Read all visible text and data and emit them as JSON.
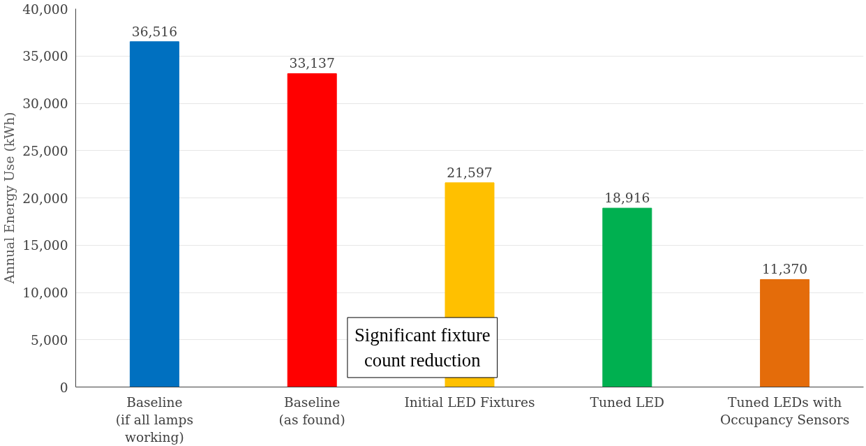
{
  "chart_data": {
    "type": "bar",
    "ylabel": "Annual Energy Use (kWh)",
    "categories": [
      "Baseline\n(if all lamps\nworking)",
      "Baseline\n(as found)",
      "Initial LED Fixtures",
      "Tuned LED",
      "Tuned LEDs with\nOccupancy Sensors"
    ],
    "values": [
      36516,
      33137,
      21597,
      18916,
      11370
    ],
    "colors": [
      "#0070c0",
      "#ff0000",
      "#ffc000",
      "#00b050",
      "#e46c0a"
    ],
    "value_labels": [
      "36,516",
      "33,137",
      "21,597",
      "18,916",
      "11,370"
    ],
    "ylim": [
      0,
      40000
    ],
    "yticks": [
      {
        "value": 0,
        "label": "0"
      },
      {
        "value": 5000,
        "label": "5,000"
      },
      {
        "value": 10000,
        "label": "10,000"
      },
      {
        "value": 15000,
        "label": "15,000"
      },
      {
        "value": 20000,
        "label": "20,000"
      },
      {
        "value": 25000,
        "label": "25,000"
      },
      {
        "value": 30000,
        "label": "30,000"
      },
      {
        "value": 35000,
        "label": "35,000"
      },
      {
        "value": 40000,
        "label": "40,000"
      }
    ],
    "grid": "y",
    "annotations": [
      "Significant fixture\ncount reduction"
    ]
  }
}
